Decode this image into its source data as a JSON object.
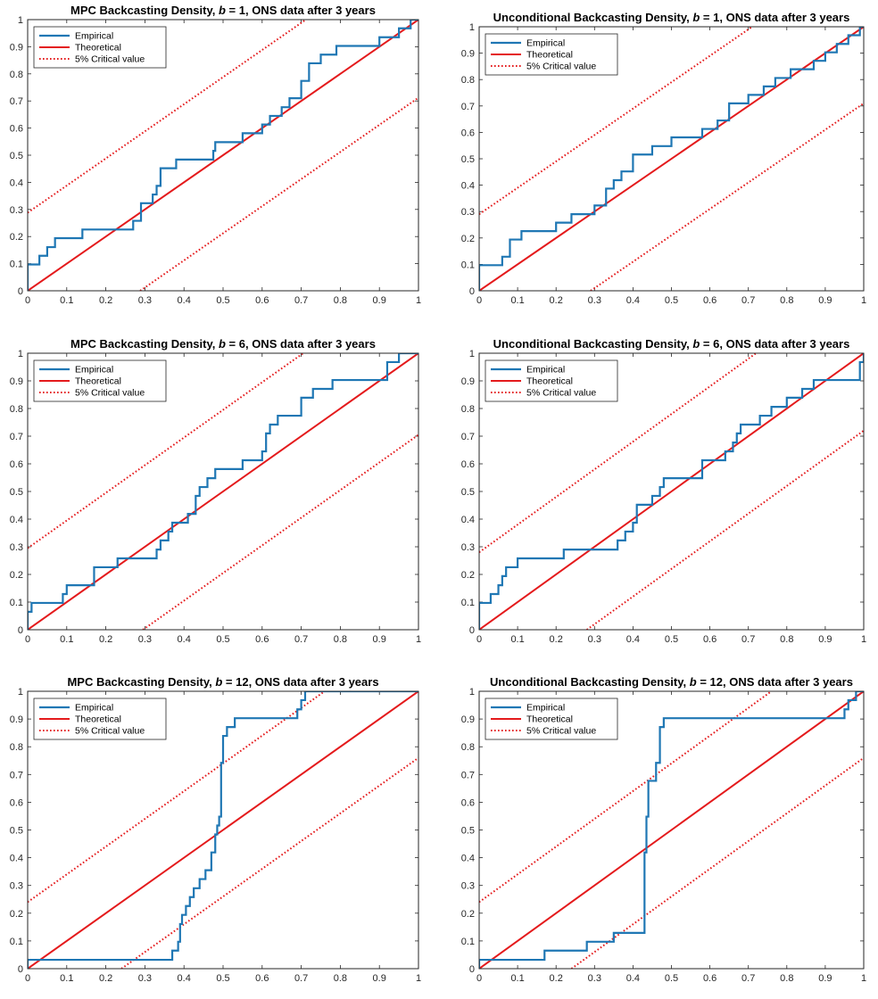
{
  "colors": {
    "empirical": "#1f77b4",
    "theoretical": "#e41a1c",
    "critical": "#e41a1c",
    "axis": "#262626"
  },
  "chart_data": [
    {
      "type": "line",
      "title": "MPC Backcasting Density, b = 1, ONS data after 3 years",
      "title_parts": {
        "pre": "MPC Backcasting Density, ",
        "italic": "b",
        "post": " = 1, ONS data after 3 years"
      },
      "xlim": [
        0,
        1
      ],
      "ylim": [
        0,
        1
      ],
      "xticks": [
        "0",
        "0.1",
        "0.2",
        "0.3",
        "0.4",
        "0.5",
        "0.6",
        "0.7",
        "0.8",
        "0.9",
        "1"
      ],
      "yticks": [
        "0",
        "0.1",
        "0.2",
        "0.3",
        "0.4",
        "0.5",
        "0.6",
        "0.7",
        "0.8",
        "0.9",
        "1"
      ],
      "legend": {
        "location": "top-left",
        "entries": [
          "Empirical",
          "Theoretical",
          "5% Critical value"
        ]
      },
      "series": [
        {
          "name": "Empirical",
          "style": "step",
          "x": [
            0,
            0,
            0.03,
            0.05,
            0.07,
            0.14,
            0.27,
            0.29,
            0.32,
            0.33,
            0.34,
            0.38,
            0.475,
            0.48,
            0.55,
            0.6,
            0.62,
            0.65,
            0.67,
            0.7,
            0.72,
            0.75,
            0.79,
            0.9,
            0.95,
            0.98,
            1
          ],
          "y": [
            0,
            0.097,
            0.129,
            0.161,
            0.194,
            0.226,
            0.258,
            0.323,
            0.355,
            0.387,
            0.452,
            0.484,
            0.516,
            0.548,
            0.581,
            0.613,
            0.645,
            0.677,
            0.71,
            0.774,
            0.839,
            0.871,
            0.903,
            0.935,
            0.968,
            1,
            1
          ]
        },
        {
          "name": "Theoretical",
          "style": "solid",
          "x": [
            0,
            1
          ],
          "y": [
            0,
            1
          ]
        },
        {
          "name": "5% Critical value",
          "style": "dotted",
          "x": [
            0,
            0.712
          ],
          "y": [
            0.288,
            1
          ]
        },
        {
          "name": "5% Critical value",
          "style": "dotted",
          "x": [
            0.288,
            1
          ],
          "y": [
            0,
            0.712
          ]
        }
      ]
    },
    {
      "type": "line",
      "title": "Unconditional Backcasting Density, b = 1, ONS data after 3 years",
      "title_parts": {
        "pre": "Unconditional Backcasting Density, ",
        "italic": "b",
        "post": " = 1, ONS data after 3 years"
      },
      "xlim": [
        0,
        1
      ],
      "ylim": [
        0,
        1
      ],
      "xticks": [
        "0",
        "0.1",
        "0.2",
        "0.3",
        "0.4",
        "0.5",
        "0.6",
        "0.7",
        "0.8",
        "0.9",
        "1"
      ],
      "yticks": [
        "0",
        "0.1",
        "0.2",
        "0.3",
        "0.4",
        "0.5",
        "0.6",
        "0.7",
        "0.8",
        "0.9",
        "1"
      ],
      "legend": {
        "location": "top-left",
        "entries": [
          "Empirical",
          "Theoretical",
          "5% Critical value"
        ]
      },
      "series": [
        {
          "name": "Empirical",
          "style": "step",
          "x": [
            0,
            0,
            0.06,
            0.08,
            0.11,
            0.2,
            0.24,
            0.3,
            0.33,
            0.35,
            0.37,
            0.4,
            0.45,
            0.5,
            0.58,
            0.62,
            0.65,
            0.7,
            0.74,
            0.77,
            0.81,
            0.87,
            0.9,
            0.93,
            0.96,
            0.99,
            1
          ],
          "y": [
            0,
            0.097,
            0.129,
            0.194,
            0.226,
            0.258,
            0.29,
            0.323,
            0.387,
            0.419,
            0.452,
            0.516,
            0.548,
            0.581,
            0.613,
            0.645,
            0.71,
            0.742,
            0.774,
            0.806,
            0.839,
            0.871,
            0.903,
            0.935,
            0.968,
            1,
            1
          ]
        },
        {
          "name": "Theoretical",
          "style": "solid",
          "x": [
            0,
            1
          ],
          "y": [
            0,
            1
          ]
        },
        {
          "name": "5% Critical value",
          "style": "dotted",
          "x": [
            0,
            0.71
          ],
          "y": [
            0.29,
            1
          ]
        },
        {
          "name": "5% Critical value",
          "style": "dotted",
          "x": [
            0.29,
            1
          ],
          "y": [
            0,
            0.71
          ]
        }
      ]
    },
    {
      "type": "line",
      "title": "MPC Backcasting Density, b = 6, ONS data after 3 years",
      "title_parts": {
        "pre": "MPC Backcasting Density, ",
        "italic": "b",
        "post": " = 6, ONS data after 3 years"
      },
      "xlim": [
        0,
        1
      ],
      "ylim": [
        0,
        1
      ],
      "xticks": [
        "0",
        "0.1",
        "0.2",
        "0.3",
        "0.4",
        "0.5",
        "0.6",
        "0.7",
        "0.8",
        "0.9",
        "1"
      ],
      "yticks": [
        "0",
        "0.1",
        "0.2",
        "0.3",
        "0.4",
        "0.5",
        "0.6",
        "0.7",
        "0.8",
        "0.9",
        "1"
      ],
      "legend": {
        "location": "top-left",
        "entries": [
          "Empirical",
          "Theoretical",
          "5% Critical value"
        ]
      },
      "series": [
        {
          "name": "Empirical",
          "style": "step",
          "x": [
            0,
            0,
            0.01,
            0.09,
            0.1,
            0.17,
            0.23,
            0.33,
            0.34,
            0.36,
            0.37,
            0.41,
            0.43,
            0.44,
            0.46,
            0.48,
            0.55,
            0.6,
            0.61,
            0.62,
            0.64,
            0.7,
            0.73,
            0.78,
            0.92,
            0.95,
            1
          ],
          "y": [
            0,
            0.065,
            0.097,
            0.129,
            0.161,
            0.226,
            0.258,
            0.29,
            0.323,
            0.355,
            0.387,
            0.419,
            0.484,
            0.516,
            0.548,
            0.581,
            0.613,
            0.645,
            0.71,
            0.742,
            0.774,
            0.839,
            0.871,
            0.903,
            0.968,
            1,
            1
          ]
        },
        {
          "name": "Theoretical",
          "style": "solid",
          "x": [
            0,
            1
          ],
          "y": [
            0,
            1
          ]
        },
        {
          "name": "5% Critical value",
          "style": "dotted",
          "x": [
            0,
            0.705
          ],
          "y": [
            0.295,
            1
          ]
        },
        {
          "name": "5% Critical value",
          "style": "dotted",
          "x": [
            0.295,
            1
          ],
          "y": [
            0,
            0.705
          ]
        }
      ]
    },
    {
      "type": "line",
      "title": "Unconditional Backcasting Density, b = 6, ONS data after 3 years",
      "title_parts": {
        "pre": "Unconditional Backcasting Density, ",
        "italic": "b",
        "post": " = 6, ONS data after 3 years"
      },
      "xlim": [
        0,
        1
      ],
      "ylim": [
        0,
        1
      ],
      "xticks": [
        "0",
        "0.1",
        "0.2",
        "0.3",
        "0.4",
        "0.5",
        "0.6",
        "0.7",
        "0.8",
        "0.9",
        "1"
      ],
      "yticks": [
        "0",
        "0.1",
        "0.2",
        "0.3",
        "0.4",
        "0.5",
        "0.6",
        "0.7",
        "0.8",
        "0.9",
        "1"
      ],
      "legend": {
        "location": "top-left",
        "entries": [
          "Empirical",
          "Theoretical",
          "5% Critical value"
        ]
      },
      "series": [
        {
          "name": "Empirical",
          "style": "step",
          "x": [
            0,
            0,
            0.03,
            0.05,
            0.06,
            0.07,
            0.1,
            0.22,
            0.36,
            0.38,
            0.4,
            0.41,
            0.45,
            0.47,
            0.48,
            0.58,
            0.64,
            0.66,
            0.67,
            0.68,
            0.73,
            0.76,
            0.8,
            0.84,
            0.87,
            0.99,
            1
          ],
          "y": [
            0,
            0.097,
            0.129,
            0.161,
            0.194,
            0.226,
            0.258,
            0.29,
            0.323,
            0.355,
            0.387,
            0.452,
            0.484,
            0.516,
            0.548,
            0.613,
            0.645,
            0.677,
            0.71,
            0.742,
            0.774,
            0.806,
            0.839,
            0.871,
            0.903,
            0.968,
            1
          ]
        },
        {
          "name": "Theoretical",
          "style": "solid",
          "x": [
            0,
            1
          ],
          "y": [
            0,
            1
          ]
        },
        {
          "name": "5% Critical value",
          "style": "dotted",
          "x": [
            0,
            0.72
          ],
          "y": [
            0.28,
            1
          ]
        },
        {
          "name": "5% Critical value",
          "style": "dotted",
          "x": [
            0.28,
            1
          ],
          "y": [
            0,
            0.72
          ]
        }
      ]
    },
    {
      "type": "line",
      "title": "MPC Backcasting Density, b = 12, ONS data after 3 years",
      "title_parts": {
        "pre": "MPC Backcasting Density, ",
        "italic": "b",
        "post": " = 12, ONS data after 3 years"
      },
      "xlim": [
        0,
        1
      ],
      "ylim": [
        0,
        1
      ],
      "xticks": [
        "0",
        "0.1",
        "0.2",
        "0.3",
        "0.4",
        "0.5",
        "0.6",
        "0.7",
        "0.8",
        "0.9",
        "1"
      ],
      "yticks": [
        "0",
        "0.1",
        "0.2",
        "0.3",
        "0.4",
        "0.5",
        "0.6",
        "0.7",
        "0.8",
        "0.9",
        "1"
      ],
      "legend": {
        "location": "top-left",
        "entries": [
          "Empirical",
          "Theoretical",
          "5% Critical value"
        ]
      },
      "series": [
        {
          "name": "Empirical",
          "style": "step",
          "x": [
            0,
            0,
            0.37,
            0.385,
            0.39,
            0.395,
            0.405,
            0.415,
            0.425,
            0.44,
            0.455,
            0.47,
            0.48,
            0.485,
            0.49,
            0.495,
            0.5,
            0.51,
            0.53,
            0.6,
            0.69,
            0.7,
            0.71,
            1
          ],
          "y": [
            0,
            0.032,
            0.065,
            0.097,
            0.161,
            0.194,
            0.226,
            0.258,
            0.29,
            0.323,
            0.355,
            0.419,
            0.484,
            0.516,
            0.548,
            0.742,
            0.839,
            0.871,
            0.903,
            0.903,
            0.935,
            0.968,
            1,
            1
          ]
        },
        {
          "name": "Theoretical",
          "style": "solid",
          "x": [
            0,
            1
          ],
          "y": [
            0,
            1
          ]
        },
        {
          "name": "5% Critical value",
          "style": "dotted",
          "x": [
            0,
            0.76
          ],
          "y": [
            0.24,
            1
          ]
        },
        {
          "name": "5% Critical value",
          "style": "dotted",
          "x": [
            0.24,
            1
          ],
          "y": [
            0,
            0.76
          ]
        }
      ]
    },
    {
      "type": "line",
      "title": "Unconditional Backcasting Density, b = 12, ONS data after 3 years",
      "title_parts": {
        "pre": "Unconditional Backcasting Density, ",
        "italic": "b",
        "post": " = 12, ONS data after 3 years"
      },
      "xlim": [
        0,
        1
      ],
      "ylim": [
        0,
        1
      ],
      "xticks": [
        "0",
        "0.1",
        "0.2",
        "0.3",
        "0.4",
        "0.5",
        "0.6",
        "0.7",
        "0.8",
        "0.9",
        "1"
      ],
      "yticks": [
        "0",
        "0.1",
        "0.2",
        "0.3",
        "0.4",
        "0.5",
        "0.6",
        "0.7",
        "0.8",
        "0.9",
        "1"
      ],
      "legend": {
        "location": "top-left",
        "entries": [
          "Empirical",
          "Theoretical",
          "5% Critical value"
        ]
      },
      "series": [
        {
          "name": "Empirical",
          "style": "step",
          "x": [
            0,
            0,
            0.17,
            0.28,
            0.35,
            0.43,
            0.435,
            0.44,
            0.46,
            0.47,
            0.48,
            0.95,
            0.96,
            0.98,
            1
          ],
          "y": [
            0,
            0.032,
            0.065,
            0.097,
            0.129,
            0.419,
            0.548,
            0.677,
            0.742,
            0.871,
            0.903,
            0.935,
            0.968,
            1,
            1
          ]
        },
        {
          "name": "Theoretical",
          "style": "solid",
          "x": [
            0,
            1
          ],
          "y": [
            0,
            1
          ]
        },
        {
          "name": "5% Critical value",
          "style": "dotted",
          "x": [
            0,
            0.76
          ],
          "y": [
            0.24,
            1
          ]
        },
        {
          "name": "5% Critical value",
          "style": "dotted",
          "x": [
            0.24,
            1
          ],
          "y": [
            0,
            0.76
          ]
        }
      ]
    }
  ]
}
